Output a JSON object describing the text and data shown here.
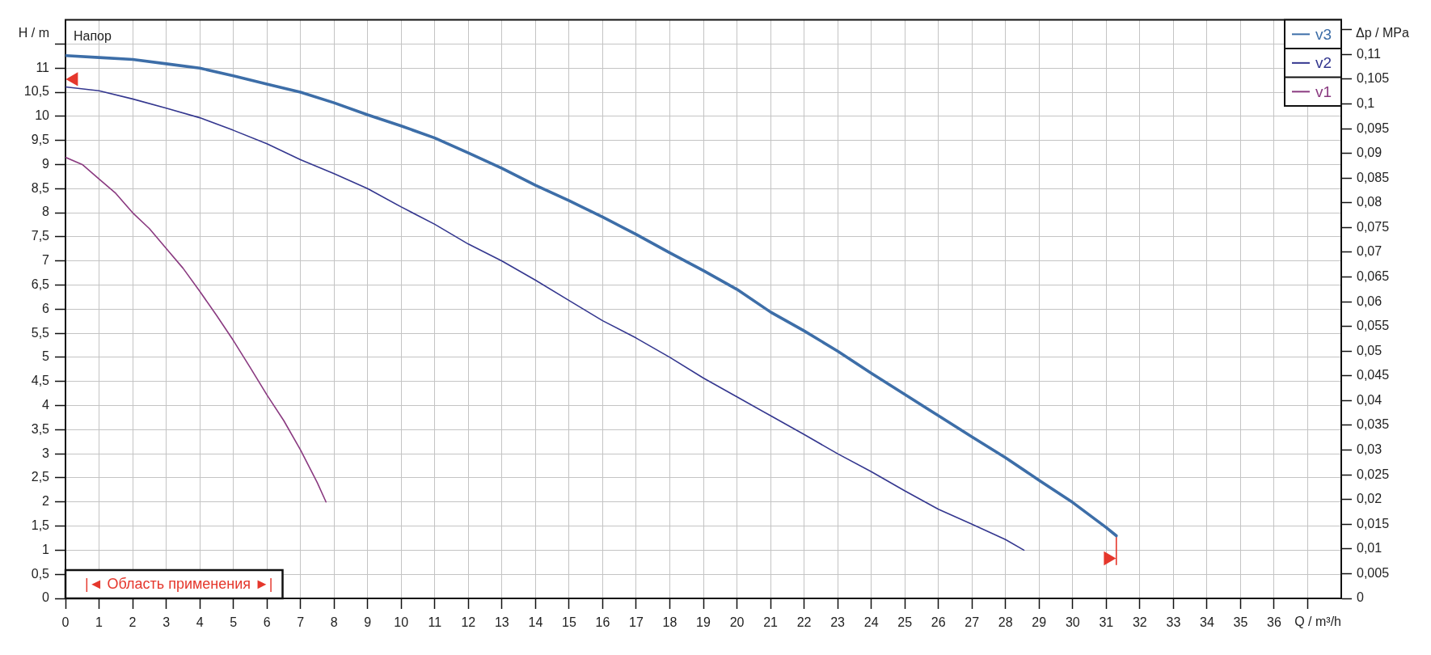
{
  "chart_data": {
    "type": "line",
    "xlabel": "Q / m³/h",
    "ylabel": "H / m",
    "y2label": "Δp / MPa",
    "annotations": [
      "Напор",
      "|◄ Область применения ►|"
    ],
    "series": [
      {
        "name": "v3",
        "color": "#3d6ea8",
        "x": [
          0,
          1,
          2,
          3,
          4,
          5,
          6,
          7,
          8,
          9,
          10,
          11,
          12,
          13,
          14,
          15,
          16,
          17,
          18,
          19,
          20,
          21,
          22,
          23,
          24,
          25,
          26,
          27,
          28,
          29,
          30,
          31,
          31.3
        ],
        "values": [
          11.26,
          11.22,
          11.18,
          11.09,
          11.0,
          10.84,
          10.67,
          10.5,
          10.28,
          10.03,
          9.8,
          9.55,
          9.24,
          8.92,
          8.57,
          8.25,
          7.91,
          7.55,
          7.17,
          6.8,
          6.41,
          5.94,
          5.55,
          5.13,
          4.67,
          4.23,
          3.79,
          3.35,
          2.92,
          2.45,
          1.99,
          1.47,
          1.3
        ]
      },
      {
        "name": "v2",
        "color": "#34378f",
        "x": [
          0,
          1,
          2,
          3,
          4,
          5,
          6,
          7,
          8,
          9,
          10,
          11,
          12,
          13,
          14,
          15,
          16,
          17,
          18,
          19,
          20,
          21,
          22,
          23,
          24,
          25,
          26,
          27,
          28,
          28.55
        ],
        "values": [
          10.61,
          10.53,
          10.36,
          10.17,
          9.97,
          9.71,
          9.43,
          9.1,
          8.81,
          8.5,
          8.12,
          7.76,
          7.35,
          7.0,
          6.6,
          6.18,
          5.76,
          5.4,
          5.0,
          4.57,
          4.18,
          3.79,
          3.4,
          3.0,
          2.63,
          2.23,
          1.85,
          1.54,
          1.22,
          1.0
        ]
      },
      {
        "name": "v1",
        "color": "#8a3a80",
        "x": [
          0,
          0.5,
          1,
          1.5,
          2,
          2.5,
          3,
          3.5,
          4,
          4.5,
          5,
          5.5,
          6,
          6.5,
          7,
          7.5,
          7.76
        ],
        "values": [
          9.15,
          9.0,
          8.7,
          8.4,
          8.0,
          7.67,
          7.26,
          6.85,
          6.37,
          5.87,
          5.35,
          4.79,
          4.22,
          3.69,
          3.08,
          2.4,
          2.0
        ]
      },
      {
        "type": "scatter",
        "marker": "triangle",
        "color": "#e5372c",
        "x": [
          0.25,
          31.05
        ],
        "values": [
          10.77,
          0.83
        ]
      },
      {
        "type": "line",
        "color": "#e5372c",
        "x": [
          31.3,
          31.3
        ],
        "values": [
          1.3,
          0.7
        ]
      }
    ],
    "xlim": [
      0,
      38
    ],
    "xticks": [
      0,
      1,
      2,
      3,
      4,
      5,
      6,
      7,
      8,
      9,
      10,
      11,
      12,
      13,
      14,
      15,
      16,
      17,
      18,
      19,
      20,
      21,
      22,
      23,
      24,
      25,
      26,
      27,
      28,
      29,
      30,
      31,
      32,
      33,
      34,
      35,
      36,
      {
        "value": 37,
        "label": null
      }
    ],
    "ylim": [
      0,
      12
    ],
    "yticks": [
      0,
      {
        "value": 0.5,
        "label": "0,5"
      },
      1,
      {
        "value": 1.5,
        "label": "1,5"
      },
      2,
      {
        "value": 2.5,
        "label": "2,5"
      },
      3,
      {
        "value": 3.5,
        "label": "3,5"
      },
      4,
      {
        "value": 4.5,
        "label": "4,5"
      },
      5,
      {
        "value": 5.5,
        "label": "5,5"
      },
      6,
      {
        "value": 6.5,
        "label": "6,5"
      },
      7,
      {
        "value": 7.5,
        "label": "7,5"
      },
      8,
      {
        "value": 8.5,
        "label": "8,5"
      },
      9,
      {
        "value": 9.5,
        "label": "9,5"
      },
      10,
      {
        "value": 10.5,
        "label": "10,5"
      },
      11,
      {
        "value": 11.5,
        "label": null
      }
    ],
    "y2lim": [
      0,
      0.117
    ],
    "y2ticks": [
      0,
      {
        "value": 0.005,
        "label": "0,005"
      },
      {
        "value": 0.01,
        "label": "0,01"
      },
      {
        "value": 0.015,
        "label": "0,015"
      },
      {
        "value": 0.02,
        "label": "0,02"
      },
      {
        "value": 0.025,
        "label": "0,025"
      },
      {
        "value": 0.03,
        "label": "0,03"
      },
      {
        "value": 0.035,
        "label": "0,035"
      },
      {
        "value": 0.04,
        "label": "0,04"
      },
      {
        "value": 0.045,
        "label": "0,045"
      },
      {
        "value": 0.05,
        "label": "0,05"
      },
      {
        "value": 0.055,
        "label": "0,055"
      },
      {
        "value": 0.06,
        "label": "0,06"
      },
      {
        "value": 0.065,
        "label": "0,065"
      },
      {
        "value": 0.07,
        "label": "0,07"
      },
      {
        "value": 0.075,
        "label": "0,075"
      },
      {
        "value": 0.08,
        "label": "0,08"
      },
      {
        "value": 0.085,
        "label": "0,085"
      },
      {
        "value": 0.09,
        "label": "0,09"
      },
      {
        "value": 0.095,
        "label": "0,095"
      },
      {
        "value": 0.1,
        "label": "0,1"
      },
      {
        "value": 0.105,
        "label": "0,105"
      },
      {
        "value": 0.11,
        "label": "0,11"
      },
      {
        "value": 0.115,
        "label": null
      }
    ],
    "grid": true,
    "legend": "top right",
    "marker": "none"
  }
}
